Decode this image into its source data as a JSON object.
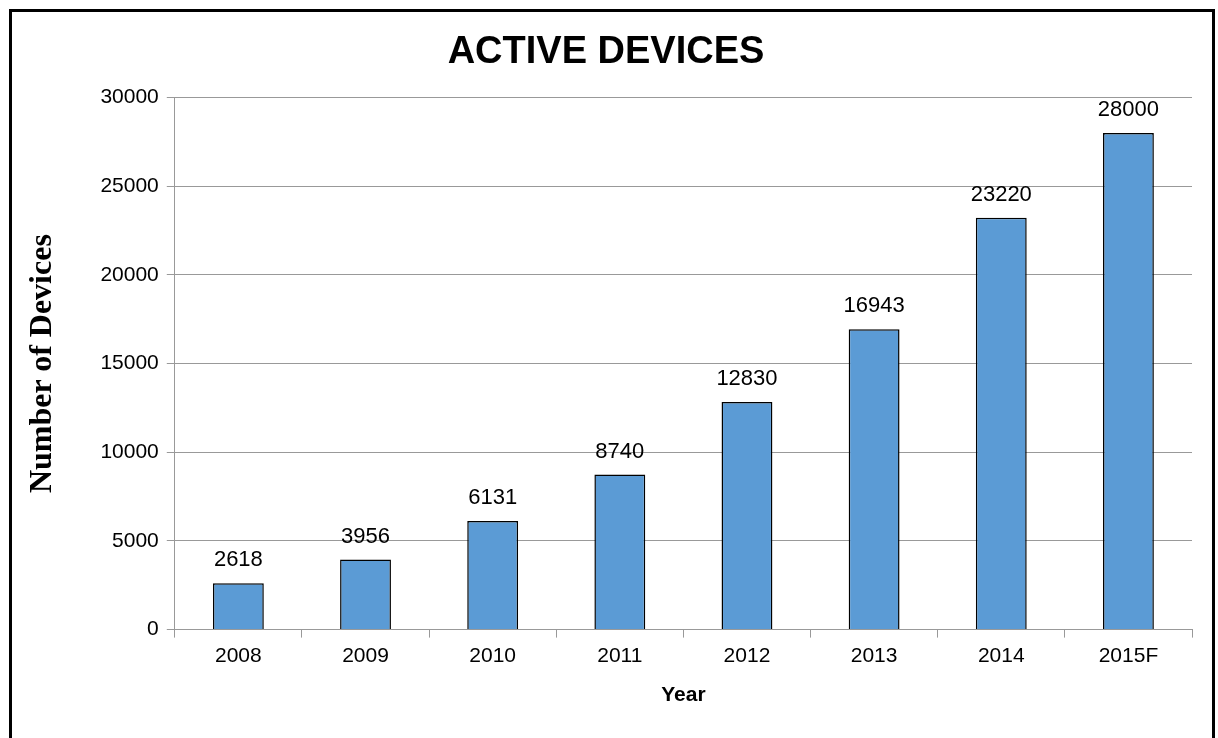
{
  "chart_data": {
    "type": "bar",
    "title": "ACTIVE DEVICES",
    "xlabel": "Year",
    "ylabel": "Number of Devices",
    "categories": [
      "2008",
      "2009",
      "2010",
      "2011",
      "2012",
      "2013",
      "2014",
      "2015F"
    ],
    "values": [
      2618,
      3956,
      6131,
      8740,
      12830,
      16943,
      23220,
      28000
    ],
    "color": "#5b9bd5",
    "ylim": [
      0,
      30000
    ],
    "yticks": [
      0,
      5000,
      10000,
      15000,
      20000,
      25000,
      30000
    ],
    "grid": "y",
    "legend": false,
    "data_labels": true
  }
}
